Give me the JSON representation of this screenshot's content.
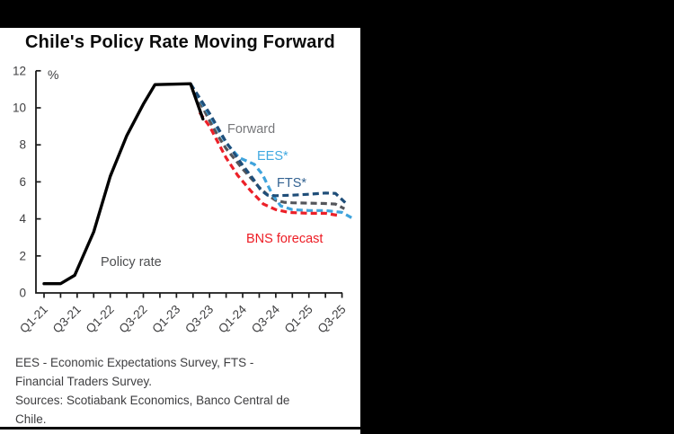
{
  "title": "Chile's Policy Rate Moving Forward",
  "footnote": {
    "lines": [
      "EES - Economic Expectations Survey, FTS -",
      "Financial Traders Survey.",
      "Sources: Scotiabank Economics, Banco Central de",
      "Chile."
    ]
  },
  "colors": {
    "background": "#000000",
    "panel": "#ffffff",
    "axis": "#1a1a1a",
    "tick_text": "#3f3f41"
  },
  "chart_data": {
    "type": "line",
    "title": "Chile's Policy Rate Moving Forward",
    "ylabel": "%",
    "ylim": [
      0,
      12
    ],
    "y_tick_step": 2,
    "y_tick_labels": [
      "0",
      "2",
      "4",
      "6",
      "8",
      "10",
      "12"
    ],
    "x_axis": {
      "unit": "quarter",
      "n_ticks": 19,
      "labeled_every": 2,
      "tick_labels": [
        "Q1-21",
        "Q3-21",
        "Q1-22",
        "Q3-22",
        "Q1-23",
        "Q3-23",
        "Q1-24",
        "Q3-24",
        "Q1-25",
        "Q3-25"
      ]
    },
    "grid": false,
    "legend": "inline-labels",
    "series": [
      {
        "name": "Forward",
        "style": "dashed",
        "color": "#54565b",
        "label_color": "#76777a",
        "points": [
          [
            8.85,
            11.3
          ],
          [
            9.6,
            10.0
          ],
          [
            10,
            9.3
          ],
          [
            10.5,
            8.5
          ],
          [
            11,
            7.8
          ],
          [
            11.5,
            7.25
          ],
          [
            12,
            6.7
          ],
          [
            12.5,
            6.2
          ],
          [
            13,
            5.7
          ],
          [
            13.5,
            5.3
          ],
          [
            14,
            5.0
          ],
          [
            14.5,
            4.9
          ],
          [
            15,
            4.87
          ],
          [
            16,
            4.85
          ],
          [
            17,
            4.83
          ],
          [
            17.6,
            4.8
          ],
          [
            18.15,
            4.55
          ]
        ]
      },
      {
        "name": "EES*",
        "style": "dashed",
        "color": "#3fa3dc",
        "label_color": "#41a9e1",
        "points": [
          [
            8.85,
            11.3
          ],
          [
            10,
            9.6
          ],
          [
            11,
            8.1
          ],
          [
            11.8,
            7.3
          ],
          [
            12.7,
            6.95
          ],
          [
            13.2,
            6.4
          ],
          [
            13.8,
            5.3
          ],
          [
            14.3,
            4.7
          ],
          [
            15,
            4.5
          ],
          [
            16,
            4.45
          ],
          [
            17,
            4.45
          ],
          [
            18,
            4.35
          ],
          [
            18.7,
            4.0
          ]
        ]
      },
      {
        "name": "FTS*",
        "style": "dashed",
        "color": "#1f4e79",
        "label_color": "#336291",
        "points": [
          [
            8.85,
            11.3
          ],
          [
            10,
            9.7
          ],
          [
            11,
            8.15
          ],
          [
            12,
            6.9
          ],
          [
            12.6,
            6.2
          ],
          [
            13.1,
            5.55
          ],
          [
            13.5,
            5.28
          ],
          [
            14,
            5.25
          ],
          [
            15,
            5.28
          ],
          [
            16,
            5.33
          ],
          [
            17,
            5.4
          ],
          [
            17.6,
            5.38
          ],
          [
            18.2,
            4.88
          ]
        ]
      },
      {
        "name": "BNS forecast",
        "style": "dashed",
        "color": "#ec2028",
        "label_color": "#ed1c24",
        "points": [
          [
            9.4,
            9.75
          ],
          [
            10,
            9.0
          ],
          [
            11,
            7.3
          ],
          [
            11.7,
            6.35
          ],
          [
            12.5,
            5.5
          ],
          [
            13.25,
            4.8
          ],
          [
            14,
            4.5
          ],
          [
            14.8,
            4.35
          ],
          [
            16,
            4.3
          ],
          [
            17,
            4.3
          ],
          [
            17.7,
            4.2
          ]
        ]
      },
      {
        "name": "Policy rate",
        "style": "solid",
        "color": "#000000",
        "label_color": "#4d4e50",
        "points": [
          [
            0,
            0.5
          ],
          [
            1,
            0.5
          ],
          [
            1.85,
            0.95
          ],
          [
            3,
            3.3
          ],
          [
            4,
            6.3
          ],
          [
            5,
            8.5
          ],
          [
            6,
            10.2
          ],
          [
            6.7,
            11.25
          ],
          [
            8.85,
            11.3
          ],
          [
            9.6,
            9.4
          ]
        ]
      }
    ],
    "series_label_positions": {
      "Policy rate": [
        112,
        265
      ],
      "Forward": [
        253,
        117
      ],
      "EES*": [
        286,
        147
      ],
      "FTS*": [
        308,
        177
      ],
      "BNS forecast": [
        274,
        239
      ]
    }
  }
}
